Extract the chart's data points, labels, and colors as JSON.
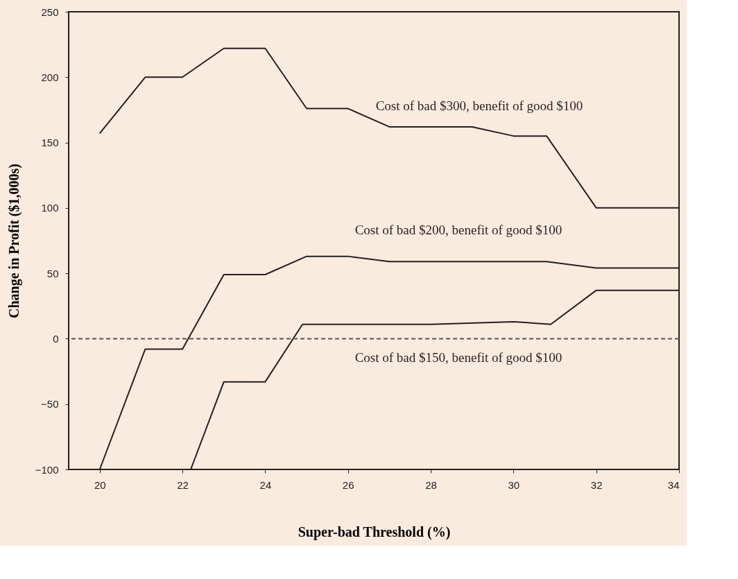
{
  "chart_data": {
    "type": "line",
    "xlabel": "Super-bad Threshold (%)",
    "ylabel": "Change in Profit ($1,000s)",
    "xlim": [
      19.25,
      34
    ],
    "xticks": [
      20,
      22,
      24,
      26,
      28,
      30,
      32,
      34
    ],
    "ylim": [
      -100,
      250
    ],
    "yticks": [
      -100,
      -50,
      0,
      50,
      100,
      150,
      200,
      250
    ],
    "grid": false,
    "line_style": "solid",
    "marker": "none",
    "series": [
      {
        "name": "Cost of bad $300, benefit of good $100",
        "color": "#231f20",
        "x": [
          20,
          21.1,
          22,
          23,
          24,
          25,
          26,
          27,
          28,
          29,
          30,
          30.8,
          32,
          34
        ],
        "values": [
          157,
          200,
          200,
          222,
          222,
          176,
          176,
          162,
          162,
          162,
          155,
          155,
          100,
          100
        ]
      },
      {
        "name": "Cost of bad $200, benefit of good $100",
        "color": "#231f20",
        "x": [
          20,
          21.1,
          22,
          23,
          24,
          25,
          26,
          27,
          28,
          29,
          30,
          30.8,
          32,
          34
        ],
        "values": [
          -100,
          -8,
          -8,
          49,
          49,
          63,
          63,
          59,
          59,
          59,
          59,
          59,
          54,
          54
        ]
      },
      {
        "name": "Cost of bad $150, benefit of good $100",
        "color": "#231f20",
        "x": [
          22.2,
          23,
          24,
          24.9,
          26,
          28,
          30,
          30.9,
          32,
          34
        ],
        "values": [
          -100,
          -33,
          -33,
          11,
          11,
          11,
          13,
          11,
          37,
          37
        ]
      }
    ],
    "ref_lines": [
      {
        "axis": "y",
        "value": 0,
        "color": "#555555",
        "line_style": "dashed"
      }
    ]
  }
}
